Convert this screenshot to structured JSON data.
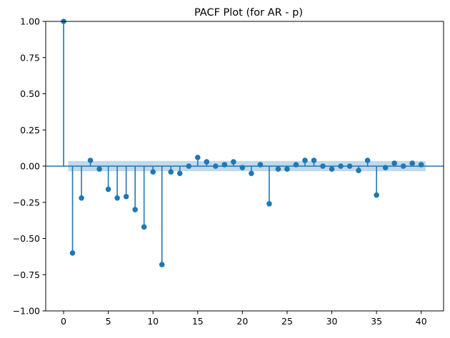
{
  "chart_data": {
    "type": "stem",
    "title": "PACF Plot (for AR - p)",
    "xlabel": "",
    "ylabel": "",
    "xlim": [
      -2,
      42.5
    ],
    "ylim": [
      -1.0,
      1.0
    ],
    "xticks": [
      0,
      5,
      10,
      15,
      20,
      25,
      30,
      35,
      40
    ],
    "xtick_labels": [
      "0",
      "5",
      "10",
      "15",
      "20",
      "25",
      "30",
      "35",
      "40"
    ],
    "yticks": [
      1.0,
      0.75,
      0.5,
      0.25,
      0.0,
      -0.25,
      -0.5,
      -0.75,
      -1.0
    ],
    "ytick_labels": [
      "1.00",
      "0.75",
      "0.50",
      "0.25",
      "0.00",
      "−0.25",
      "−0.50",
      "−0.75",
      "−1.00"
    ],
    "grid": false,
    "legend": false,
    "x": [
      0,
      1,
      2,
      3,
      4,
      5,
      6,
      7,
      8,
      9,
      10,
      11,
      12,
      13,
      14,
      15,
      16,
      17,
      18,
      19,
      20,
      21,
      22,
      23,
      24,
      25,
      26,
      27,
      28,
      29,
      30,
      31,
      32,
      33,
      34,
      35,
      36,
      37,
      38,
      39,
      40
    ],
    "values": [
      1.0,
      -0.6,
      -0.22,
      0.04,
      -0.02,
      -0.16,
      -0.22,
      -0.21,
      -0.3,
      -0.42,
      -0.04,
      -0.68,
      -0.04,
      -0.05,
      0.0,
      0.06,
      0.03,
      0.0,
      0.01,
      0.03,
      -0.01,
      -0.05,
      0.01,
      -0.26,
      -0.02,
      -0.02,
      0.01,
      0.04,
      0.04,
      0.0,
      -0.02,
      0.0,
      0.0,
      -0.03,
      0.04,
      -0.2,
      -0.01,
      0.02,
      0.0,
      0.02,
      0.01
    ],
    "confidence_band": {
      "lower": -0.035,
      "upper": 0.035,
      "x_start": 0.5,
      "x_end": 40.5
    },
    "colors": {
      "stem": "#1f77b4",
      "band": "#1f77b4",
      "axis": "#000000"
    }
  }
}
